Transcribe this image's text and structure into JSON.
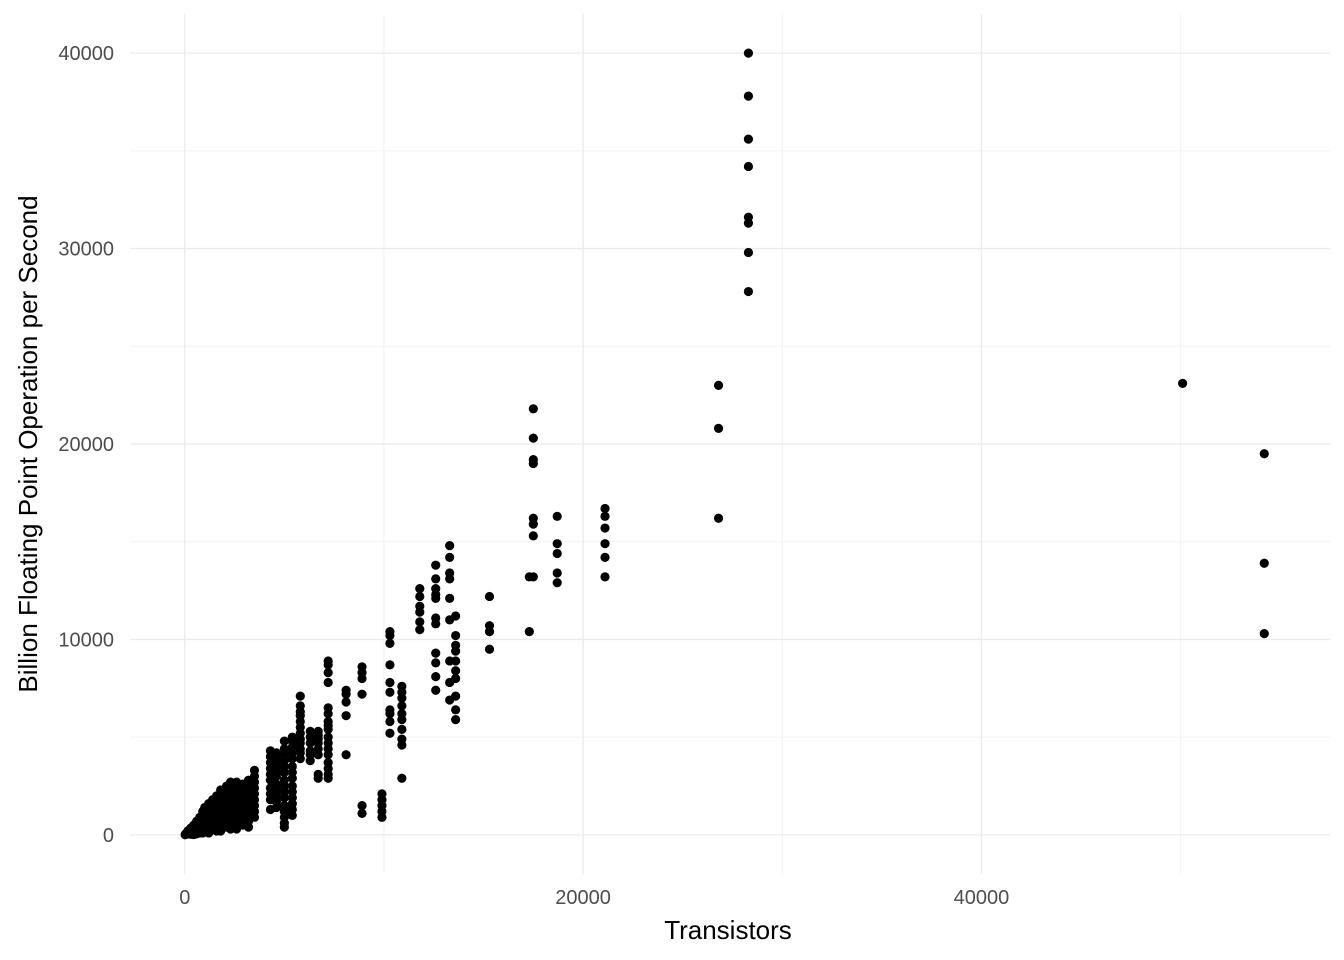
{
  "chart_data": {
    "type": "scatter",
    "title": "",
    "xlabel": "Transistors",
    "ylabel": "Billion Floating Point Operation per Second",
    "xlim": [
      -2750,
      57500
    ],
    "ylim": [
      -2000,
      42000
    ],
    "x_ticks": [
      0,
      20000,
      40000
    ],
    "x_tick_labels": [
      "0",
      "20000",
      "40000"
    ],
    "y_ticks": [
      0,
      10000,
      20000,
      30000,
      40000
    ],
    "y_tick_labels": [
      "0",
      "10000",
      "20000",
      "30000",
      "40000"
    ],
    "x_minor_ticks": [
      10000,
      30000,
      50000
    ],
    "y_minor_ticks": [
      5000,
      15000,
      25000,
      35000
    ],
    "grid": true,
    "legend": "none",
    "colors": {
      "point": "#000000",
      "grid_major": "#ebebeb",
      "grid_minor": "#f2f2f2",
      "tick_text": "#4d4d4d"
    },
    "series": [
      {
        "points": [
          [
            28300,
            40000
          ],
          [
            28300,
            37800
          ],
          [
            28300,
            35600
          ],
          [
            28300,
            34200
          ],
          [
            28300,
            31600
          ],
          [
            28300,
            31300
          ],
          [
            28300,
            29800
          ],
          [
            28300,
            27800
          ],
          [
            26800,
            23000
          ],
          [
            26800,
            20800
          ],
          [
            26800,
            16200
          ],
          [
            50100,
            23100
          ],
          [
            54200,
            19500
          ],
          [
            54200,
            13900
          ],
          [
            54200,
            10300
          ],
          [
            21100,
            16700
          ],
          [
            21100,
            16300
          ],
          [
            21100,
            15700
          ],
          [
            21100,
            14900
          ],
          [
            21100,
            14200
          ],
          [
            21100,
            13200
          ],
          [
            18700,
            16300
          ],
          [
            18700,
            14900
          ],
          [
            18700,
            14400
          ],
          [
            18700,
            13400
          ],
          [
            18700,
            12900
          ],
          [
            17500,
            21800
          ],
          [
            17500,
            20300
          ],
          [
            17500,
            19200
          ],
          [
            17500,
            19000
          ],
          [
            17500,
            16200
          ],
          [
            17500,
            15900
          ],
          [
            17500,
            15300
          ],
          [
            17500,
            13200
          ],
          [
            17300,
            13200
          ],
          [
            17300,
            10400
          ],
          [
            15300,
            12200
          ],
          [
            15300,
            10700
          ],
          [
            15300,
            10400
          ],
          [
            15300,
            9500
          ],
          [
            13300,
            14800
          ],
          [
            13300,
            14200
          ],
          [
            13300,
            13400
          ],
          [
            13300,
            13100
          ],
          [
            13300,
            12100
          ],
          [
            13300,
            11000
          ],
          [
            13300,
            8900
          ],
          [
            13300,
            7800
          ],
          [
            13300,
            6900
          ],
          [
            13600,
            11200
          ],
          [
            13600,
            10200
          ],
          [
            13600,
            9700
          ],
          [
            13600,
            9400
          ],
          [
            13600,
            8900
          ],
          [
            13600,
            8400
          ],
          [
            13600,
            8000
          ],
          [
            13600,
            7100
          ],
          [
            13600,
            6400
          ],
          [
            13600,
            5900
          ],
          [
            12600,
            13800
          ],
          [
            12600,
            13100
          ],
          [
            12600,
            12600
          ],
          [
            12600,
            12300
          ],
          [
            12600,
            12100
          ],
          [
            12600,
            11100
          ],
          [
            12600,
            10800
          ],
          [
            12600,
            9300
          ],
          [
            12600,
            8800
          ],
          [
            12600,
            8100
          ],
          [
            12600,
            7400
          ],
          [
            11800,
            12600
          ],
          [
            11800,
            12200
          ],
          [
            11800,
            11700
          ],
          [
            11800,
            11400
          ],
          [
            11800,
            10900
          ],
          [
            11800,
            10500
          ],
          [
            10300,
            10400
          ],
          [
            10300,
            10200
          ],
          [
            10300,
            9800
          ],
          [
            10300,
            8700
          ],
          [
            10300,
            7800
          ],
          [
            10300,
            7300
          ],
          [
            10300,
            6400
          ],
          [
            10300,
            6200
          ],
          [
            10300,
            5800
          ],
          [
            10300,
            5200
          ],
          [
            10900,
            7600
          ],
          [
            10900,
            7300
          ],
          [
            10900,
            7000
          ],
          [
            10900,
            6600
          ],
          [
            10900,
            6200
          ],
          [
            10900,
            5900
          ],
          [
            10900,
            5400
          ],
          [
            10900,
            4900
          ],
          [
            10900,
            4600
          ],
          [
            10900,
            2900
          ],
          [
            9900,
            2100
          ],
          [
            9900,
            1800
          ],
          [
            9900,
            1500
          ],
          [
            9900,
            1200
          ],
          [
            9900,
            900
          ],
          [
            8900,
            8600
          ],
          [
            8900,
            8300
          ],
          [
            8900,
            8000
          ],
          [
            8900,
            7200
          ],
          [
            8900,
            1500
          ],
          [
            8900,
            1100
          ],
          [
            8100,
            7400
          ],
          [
            8100,
            7200
          ],
          [
            8100,
            6800
          ],
          [
            8100,
            6100
          ],
          [
            8100,
            4100
          ],
          [
            7200,
            8900
          ],
          [
            7200,
            8700
          ],
          [
            7200,
            8300
          ],
          [
            7200,
            7800
          ],
          [
            7200,
            6500
          ],
          [
            7200,
            6200
          ],
          [
            7200,
            5800
          ],
          [
            7200,
            5600
          ],
          [
            7200,
            5400
          ],
          [
            7200,
            5000
          ],
          [
            7200,
            4700
          ],
          [
            7200,
            4400
          ],
          [
            7200,
            4100
          ],
          [
            7200,
            3700
          ],
          [
            7200,
            3400
          ],
          [
            7200,
            3100
          ],
          [
            7200,
            2900
          ],
          [
            6700,
            5300
          ],
          [
            6700,
            5100
          ],
          [
            6700,
            4900
          ],
          [
            6700,
            4700
          ],
          [
            6700,
            4400
          ],
          [
            6700,
            4100
          ],
          [
            6700,
            3100
          ],
          [
            6700,
            2900
          ],
          [
            6300,
            5300
          ],
          [
            6300,
            5000
          ],
          [
            6300,
            4700
          ],
          [
            6300,
            4300
          ],
          [
            6300,
            4100
          ],
          [
            6300,
            3800
          ],
          [
            5800,
            7100
          ],
          [
            5800,
            6600
          ],
          [
            5800,
            6300
          ],
          [
            5800,
            6100
          ],
          [
            5800,
            5800
          ],
          [
            5800,
            5500
          ],
          [
            5800,
            5200
          ],
          [
            5800,
            4900
          ],
          [
            5800,
            4700
          ],
          [
            5800,
            4400
          ],
          [
            5800,
            4200
          ],
          [
            5800,
            3900
          ],
          [
            5400,
            5000
          ],
          [
            5400,
            4800
          ],
          [
            5400,
            4500
          ],
          [
            5400,
            4200
          ],
          [
            5400,
            3900
          ],
          [
            5400,
            3500
          ],
          [
            5400,
            3200
          ],
          [
            5400,
            2900
          ],
          [
            5400,
            2500
          ],
          [
            5400,
            2200
          ],
          [
            5400,
            1900
          ],
          [
            5400,
            1600
          ],
          [
            5400,
            1300
          ],
          [
            5400,
            1000
          ],
          [
            5000,
            4800
          ],
          [
            5000,
            4400
          ],
          [
            5000,
            4100
          ],
          [
            5000,
            3800
          ],
          [
            5000,
            3500
          ],
          [
            5000,
            3200
          ],
          [
            5000,
            2800
          ],
          [
            5000,
            2500
          ],
          [
            5000,
            2200
          ],
          [
            5000,
            1900
          ],
          [
            5000,
            1500
          ],
          [
            5000,
            1200
          ],
          [
            5000,
            900
          ],
          [
            5000,
            600
          ],
          [
            5000,
            400
          ],
          [
            4600,
            4200
          ],
          [
            4600,
            3900
          ],
          [
            4600,
            3600
          ],
          [
            4600,
            3300
          ],
          [
            4600,
            3000
          ],
          [
            4600,
            2600
          ],
          [
            4600,
            2300
          ],
          [
            4600,
            2000
          ],
          [
            4600,
            1700
          ],
          [
            4600,
            1400
          ],
          [
            4300,
            4300
          ],
          [
            4300,
            4000
          ],
          [
            4300,
            3700
          ],
          [
            4300,
            3400
          ],
          [
            4300,
            3100
          ],
          [
            4300,
            2800
          ],
          [
            4300,
            2400
          ],
          [
            4300,
            2100
          ],
          [
            4300,
            1800
          ],
          [
            4300,
            1300
          ],
          [
            3500,
            3300
          ],
          [
            3500,
            3000
          ],
          [
            3500,
            2700
          ],
          [
            3500,
            2400
          ],
          [
            3500,
            2100
          ],
          [
            3500,
            1800
          ],
          [
            3500,
            1500
          ],
          [
            3500,
            1200
          ],
          [
            3500,
            900
          ],
          [
            3200,
            2800
          ],
          [
            3200,
            2500
          ],
          [
            3200,
            2200
          ],
          [
            3200,
            1900
          ],
          [
            3200,
            1600
          ],
          [
            3200,
            1300
          ],
          [
            3200,
            1000
          ],
          [
            3200,
            700
          ],
          [
            3200,
            400
          ],
          [
            2900,
            2600
          ],
          [
            2900,
            2300
          ],
          [
            2900,
            2000
          ],
          [
            2900,
            1700
          ],
          [
            2900,
            1400
          ],
          [
            2900,
            1100
          ],
          [
            2900,
            800
          ],
          [
            2900,
            500
          ],
          [
            2600,
            2700
          ],
          [
            2600,
            2400
          ],
          [
            2600,
            2100
          ],
          [
            2600,
            1800
          ],
          [
            2600,
            1500
          ],
          [
            2600,
            1200
          ],
          [
            2600,
            900
          ],
          [
            2600,
            600
          ],
          [
            2600,
            300
          ],
          [
            2300,
            2700
          ],
          [
            2300,
            2400
          ],
          [
            2300,
            2100
          ],
          [
            2300,
            1800
          ],
          [
            2300,
            1500
          ],
          [
            2300,
            1200
          ],
          [
            2300,
            900
          ],
          [
            2300,
            600
          ],
          [
            2300,
            300
          ],
          [
            2100,
            2500
          ],
          [
            2100,
            2200
          ],
          [
            2100,
            1900
          ],
          [
            2100,
            1600
          ],
          [
            2100,
            1300
          ],
          [
            2100,
            1000
          ],
          [
            2100,
            700
          ],
          [
            2100,
            400
          ],
          [
            1800,
            2300
          ],
          [
            1800,
            2000
          ],
          [
            1800,
            1700
          ],
          [
            1800,
            1400
          ],
          [
            1800,
            1100
          ],
          [
            1800,
            800
          ],
          [
            1800,
            500
          ],
          [
            1800,
            200
          ],
          [
            1600,
            2000
          ],
          [
            1600,
            1700
          ],
          [
            1600,
            1400
          ],
          [
            1600,
            1100
          ],
          [
            1600,
            800
          ],
          [
            1600,
            500
          ],
          [
            1600,
            200
          ],
          [
            1400,
            1800
          ],
          [
            1400,
            1500
          ],
          [
            1400,
            1200
          ],
          [
            1400,
            900
          ],
          [
            1400,
            600
          ],
          [
            1400,
            300
          ],
          [
            1200,
            1600
          ],
          [
            1200,
            1300
          ],
          [
            1200,
            1000
          ],
          [
            1200,
            700
          ],
          [
            1200,
            400
          ],
          [
            1200,
            100
          ],
          [
            1000,
            1400
          ],
          [
            1000,
            1100
          ],
          [
            1000,
            800
          ],
          [
            1000,
            500
          ],
          [
            1000,
            200
          ],
          [
            900,
            1200
          ],
          [
            900,
            900
          ],
          [
            900,
            600
          ],
          [
            900,
            300
          ],
          [
            900,
            100
          ],
          [
            750,
            900
          ],
          [
            750,
            600
          ],
          [
            750,
            350
          ],
          [
            750,
            100
          ],
          [
            600,
            700
          ],
          [
            600,
            450
          ],
          [
            600,
            200
          ],
          [
            600,
            50
          ],
          [
            450,
            500
          ],
          [
            450,
            300
          ],
          [
            450,
            100
          ],
          [
            450,
            20
          ],
          [
            300,
            350
          ],
          [
            300,
            150
          ],
          [
            300,
            30
          ],
          [
            150,
            200
          ],
          [
            150,
            60
          ],
          [
            50,
            60
          ],
          [
            20,
            10
          ]
        ]
      }
    ]
  }
}
